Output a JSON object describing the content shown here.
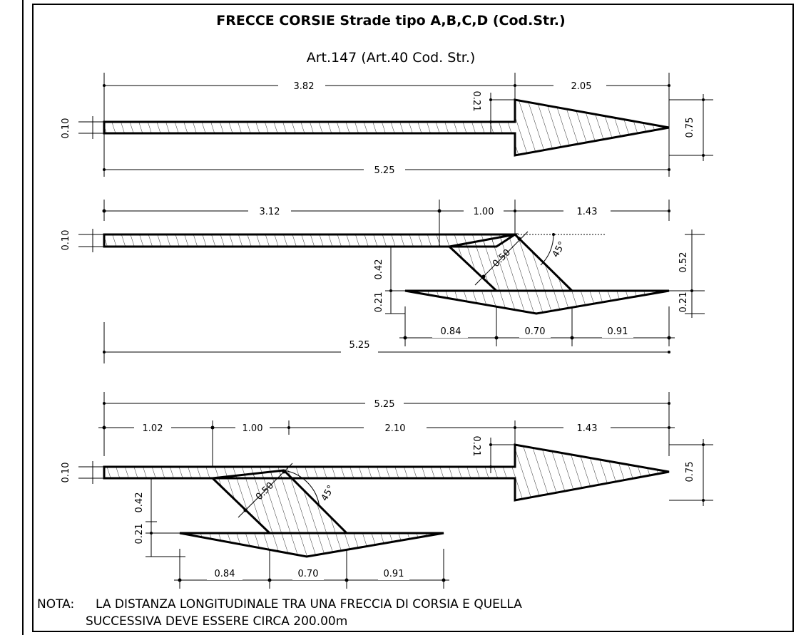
{
  "title": "FRECCE CORSIE Strade tipo A,B,C,D (Cod.Str.)",
  "subtitle": "Art.147 (Art.40 Cod. Str.)",
  "arrow1": {
    "shaft_length": "3.82",
    "head_length": "2.05",
    "total_length": "5.25",
    "shaft_width": "0.10",
    "head_offset": "0.21",
    "head_width": "0.75"
  },
  "arrow2": {
    "shaft_length": "3.12",
    "diag_run": "1.00",
    "tail_length": "1.43",
    "shaft_width": "0.10",
    "diag_drop": "0.42",
    "diag_width": "0.50",
    "angle": "45°",
    "head_width_right": "0.52",
    "head_height_left": "0.21",
    "head_height_right": "0.21",
    "head_left": "0.84",
    "head_middle": "0.70",
    "head_right": "0.91",
    "total_length": "5.25"
  },
  "arrow3": {
    "total_length": "5.25",
    "start_offset": "1.02",
    "diag_run": "1.00",
    "mid_length": "2.10",
    "head_length": "1.43",
    "head_offset": "0.21",
    "shaft_width": "0.10",
    "head_width": "0.75",
    "diag_drop": "0.42",
    "diag_width": "0.50",
    "angle": "45°",
    "head_height": "0.21",
    "head_left": "0.84",
    "head_middle": "0.70",
    "head_right": "0.91"
  },
  "note": {
    "label": "NOTA:",
    "line1": "LA DISTANZA LONGITUDINALE  TRA UNA FRECCIA DI CORSIA E QUELLA",
    "line2": "SUCCESSIVA DEVE ESSERE CIRCA 200.00m"
  }
}
